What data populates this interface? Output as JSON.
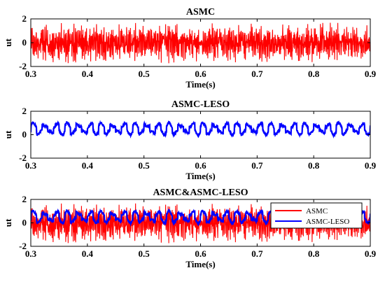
{
  "chart_data": [
    {
      "type": "line",
      "title": "ASMC",
      "xlabel": "Time(s)",
      "ylabel": "ut",
      "xlim": [
        0.3,
        0.9
      ],
      "ylim": [
        -2,
        2
      ],
      "xticks": [
        0.3,
        0.4,
        0.5,
        0.6,
        0.7,
        0.8,
        0.9
      ],
      "xtick_labels": [
        "0.3",
        "0.4",
        "0.5",
        "0.6",
        "0.7",
        "0.8",
        "0.9"
      ],
      "yticks": [
        -2,
        0,
        2
      ],
      "ytick_labels": [
        "-2",
        "0",
        "2"
      ],
      "grid": false,
      "legend": null,
      "series": [
        {
          "color": "#ff0000",
          "mean": 0,
          "amplitude": 1.8,
          "pattern": "high-frequency chattering",
          "anomaly_x": 0.6
        }
      ]
    },
    {
      "type": "line",
      "title": "ASMC-LESO",
      "xlabel": "Time(s)",
      "ylabel": "ut",
      "xlim": [
        0.3,
        0.9
      ],
      "ylim": [
        -2,
        2
      ],
      "xticks": [
        0.3,
        0.4,
        0.5,
        0.6,
        0.7,
        0.8,
        0.9
      ],
      "xtick_labels": [
        "0.3",
        "0.4",
        "0.5",
        "0.6",
        "0.7",
        "0.8",
        "0.9"
      ],
      "yticks": [
        -2,
        0,
        2
      ],
      "ytick_labels": [
        "-2",
        "0",
        "2"
      ],
      "grid": false,
      "legend": null,
      "series": [
        {
          "color": "#0000ff",
          "mean": 0.5,
          "amplitude": 0.45,
          "period_s": 0.02,
          "pattern": "periodic with small chatter"
        }
      ]
    },
    {
      "type": "line",
      "title": "ASMC&ASMC-LESO",
      "xlabel": "Time(s)",
      "ylabel": "ut",
      "xlim": [
        0.3,
        0.9
      ],
      "ylim": [
        -2,
        2
      ],
      "xticks": [
        0.3,
        0.4,
        0.5,
        0.6,
        0.7,
        0.8,
        0.9
      ],
      "xtick_labels": [
        "0.3",
        "0.4",
        "0.5",
        "0.6",
        "0.7",
        "0.8",
        "0.9"
      ],
      "yticks": [
        -2,
        0,
        2
      ],
      "ytick_labels": [
        "-2",
        "0",
        "2"
      ],
      "grid": false,
      "legend": "top-right",
      "series": [
        {
          "name": "ASMC",
          "color": "#ff0000",
          "mean": 0,
          "amplitude": 1.8,
          "pattern": "high-frequency chattering",
          "anomaly_x": 0.6
        },
        {
          "name": "ASMC-LESO",
          "color": "#0000ff",
          "mean": 0.5,
          "amplitude": 0.45,
          "period_s": 0.02,
          "pattern": "periodic with small chatter"
        }
      ]
    }
  ]
}
